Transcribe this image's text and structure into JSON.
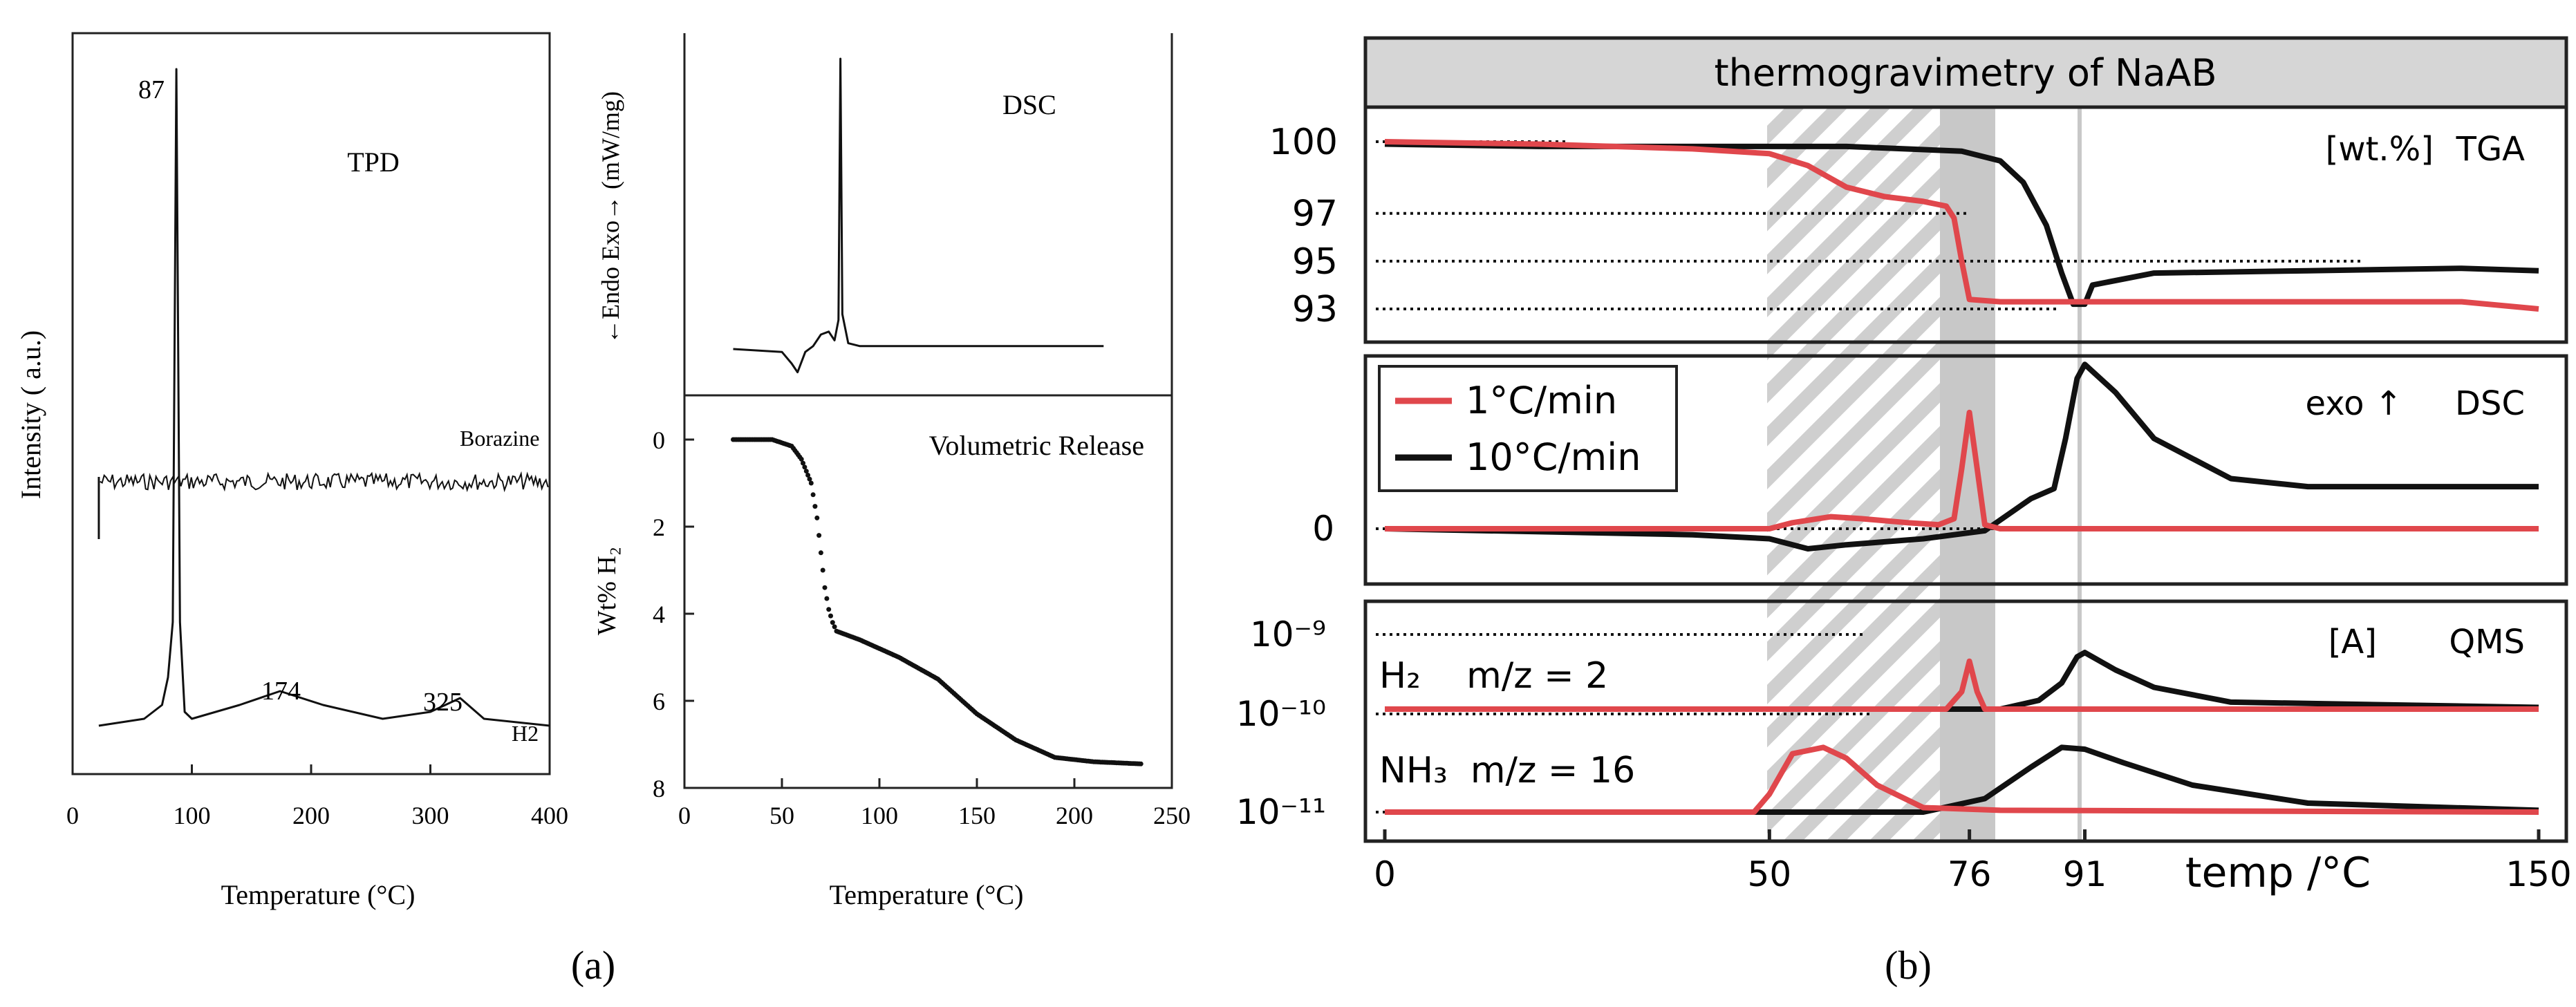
{
  "panel_labels": {
    "a": "(a)",
    "b": "(b)"
  },
  "colors": {
    "red": "#e0474c",
    "black": "#111111",
    "header_bg": "#d6d6d6",
    "shade": "#c8c8c8"
  },
  "chart_data": [
    {
      "id": "tpd",
      "type": "line",
      "title": "TPD",
      "xlabel": "Temperature (°C)",
      "ylabel": "Intensity ( a.u.)",
      "xlim": [
        0,
        400
      ],
      "xticks": [
        "0",
        "100",
        "200",
        "300",
        "400"
      ],
      "annotations": [
        "87",
        "174",
        "325"
      ],
      "series": [
        {
          "name": "Borazine",
          "x": [
            22,
            23,
            30,
            87,
            150,
            250,
            330,
            400
          ],
          "y": [
            0.0,
            0.62,
            0.62,
            0.62,
            0.62,
            0.62,
            0.62,
            0.62
          ]
        },
        {
          "name": "H2",
          "x": [
            22,
            60,
            75,
            80,
            84,
            87,
            90,
            94,
            100,
            140,
            174,
            210,
            260,
            300,
            325,
            345,
            400
          ],
          "y": [
            0.05,
            0.06,
            0.08,
            0.12,
            0.2,
            1.0,
            0.2,
            0.07,
            0.06,
            0.08,
            0.1,
            0.08,
            0.06,
            0.07,
            0.09,
            0.06,
            0.05
          ]
        }
      ]
    },
    {
      "id": "dsc-a",
      "type": "line",
      "title": "DSC",
      "ylabel": "←Endo Exo→ (mW/mg)",
      "xlim": [
        0,
        250
      ],
      "series": [
        {
          "name": "",
          "x": [
            25,
            50,
            55,
            58,
            62,
            66,
            70,
            74,
            77,
            79,
            80,
            81,
            84,
            90,
            150,
            215
          ],
          "y": [
            0.0,
            -0.01,
            -0.05,
            -0.08,
            -0.01,
            0.01,
            0.05,
            0.06,
            0.03,
            0.1,
            1.0,
            0.12,
            0.02,
            0.01,
            0.01,
            0.01
          ]
        }
      ]
    },
    {
      "id": "volumetric",
      "type": "scatter",
      "title": "Volumetric Release",
      "xlabel": "Temperature (°C)",
      "ylabel": "Wt% H₂",
      "xlim": [
        0,
        250
      ],
      "ylim": [
        0,
        8
      ],
      "y_inverted": true,
      "xticks": [
        "0",
        "50",
        "100",
        "150",
        "200",
        "250"
      ],
      "yticks": [
        "0",
        "2",
        "4",
        "6",
        "8"
      ],
      "series": [
        {
          "name": "",
          "x": [
            25,
            45,
            55,
            60,
            65,
            68,
            70,
            72,
            74,
            76,
            78,
            90,
            110,
            130,
            150,
            170,
            190,
            210,
            235
          ],
          "y": [
            0.0,
            0.0,
            0.15,
            0.45,
            1.0,
            1.8,
            2.6,
            3.4,
            3.9,
            4.2,
            4.4,
            4.6,
            5.0,
            5.5,
            6.3,
            6.9,
            7.3,
            7.4,
            7.45
          ]
        }
      ]
    },
    {
      "id": "tga",
      "type": "line",
      "title": "thermogravimetry of NaAB",
      "ylabel": "[wt.%]",
      "panel_label": "TGA",
      "xlim": [
        0,
        150
      ],
      "yticks": [
        "100",
        "97",
        "95",
        "93"
      ],
      "reference_lines": [
        100,
        97,
        95,
        93
      ],
      "series": [
        {
          "name": "1°C/min",
          "x": [
            0,
            20,
            40,
            50,
            55,
            60,
            65,
            70,
            73,
            74,
            75,
            76,
            80,
            90,
            120,
            140,
            150
          ],
          "y": [
            100,
            99.9,
            99.7,
            99.5,
            99.0,
            98.1,
            97.7,
            97.5,
            97.3,
            96.8,
            95.0,
            93.4,
            93.3,
            93.3,
            93.3,
            93.3,
            93.0
          ]
        },
        {
          "name": "10°C/min",
          "x": [
            0,
            20,
            40,
            60,
            75,
            80,
            83,
            86,
            88,
            89.5,
            91,
            92,
            100,
            120,
            140,
            150
          ],
          "y": [
            99.9,
            99.8,
            99.8,
            99.8,
            99.6,
            99.2,
            98.3,
            96.5,
            94.5,
            93.2,
            93.2,
            94.0,
            94.5,
            94.6,
            94.7,
            94.6
          ]
        }
      ]
    },
    {
      "id": "dsc-b",
      "type": "line",
      "ylabel": "exo ↑",
      "panel_label": "DSC",
      "xlim": [
        0,
        150
      ],
      "yticks": [
        "0"
      ],
      "series": [
        {
          "name": "1°C/min",
          "x": [
            0,
            40,
            50,
            53,
            58,
            62,
            68,
            72,
            74,
            75,
            76,
            77,
            78,
            80,
            100,
            150
          ],
          "y": [
            0,
            0,
            0,
            0.03,
            0.06,
            0.05,
            0.03,
            0.02,
            0.05,
            0.3,
            0.58,
            0.3,
            0.02,
            0.0,
            0.0,
            0.0
          ]
        },
        {
          "name": "10°C/min",
          "x": [
            0,
            40,
            50,
            55,
            60,
            70,
            78,
            84,
            87,
            88.5,
            90,
            91,
            95,
            100,
            110,
            120,
            150
          ],
          "y": [
            0,
            -0.03,
            -0.05,
            -0.1,
            -0.08,
            -0.05,
            -0.01,
            0.15,
            0.2,
            0.45,
            0.75,
            0.82,
            0.68,
            0.45,
            0.25,
            0.21,
            0.21
          ]
        }
      ]
    },
    {
      "id": "qms",
      "type": "line",
      "ylabel": "[A]",
      "panel_label": "QMS",
      "xlim": [
        0,
        150
      ],
      "xticks": [
        "0",
        "50",
        "76",
        "91",
        "150"
      ],
      "xlabel": "temp /°C",
      "yticks": [
        "10⁻⁹",
        "10⁻¹⁰",
        "10⁻¹¹"
      ],
      "labels": [
        "H₂    m/z = 2",
        "NH₃  m/z = 16"
      ],
      "series": [
        {
          "name": "H2 1°C/min",
          "x": [
            0,
            73,
            75,
            76,
            77,
            78,
            150
          ],
          "y": [
            0.0,
            0.0,
            0.2,
            0.55,
            0.2,
            0.0,
            0.0
          ]
        },
        {
          "name": "H2 10°C/min",
          "x": [
            0,
            80,
            85,
            88,
            90,
            91,
            95,
            100,
            110,
            150
          ],
          "y": [
            0.0,
            0.0,
            0.1,
            0.3,
            0.6,
            0.65,
            0.45,
            0.25,
            0.08,
            0.02
          ]
        },
        {
          "name": "NH3 1°C/min",
          "x": [
            0,
            48,
            50,
            53,
            57,
            60,
            64,
            70,
            80,
            150
          ],
          "y": [
            0.0,
            0.0,
            0.2,
            0.65,
            0.72,
            0.6,
            0.3,
            0.05,
            0.02,
            0.0
          ]
        },
        {
          "name": "NH3 10°C/min",
          "x": [
            0,
            70,
            78,
            84,
            88,
            91,
            96,
            105,
            120,
            150
          ],
          "y": [
            0.0,
            0.0,
            0.15,
            0.5,
            0.72,
            0.7,
            0.55,
            0.3,
            0.1,
            0.02
          ]
        }
      ]
    }
  ],
  "legend": [
    "1°C/min",
    "10°C/min"
  ],
  "shaded_region": {
    "hatched_x": [
      50,
      76
    ],
    "gray_x": [
      76,
      80
    ],
    "line_x": 91
  }
}
